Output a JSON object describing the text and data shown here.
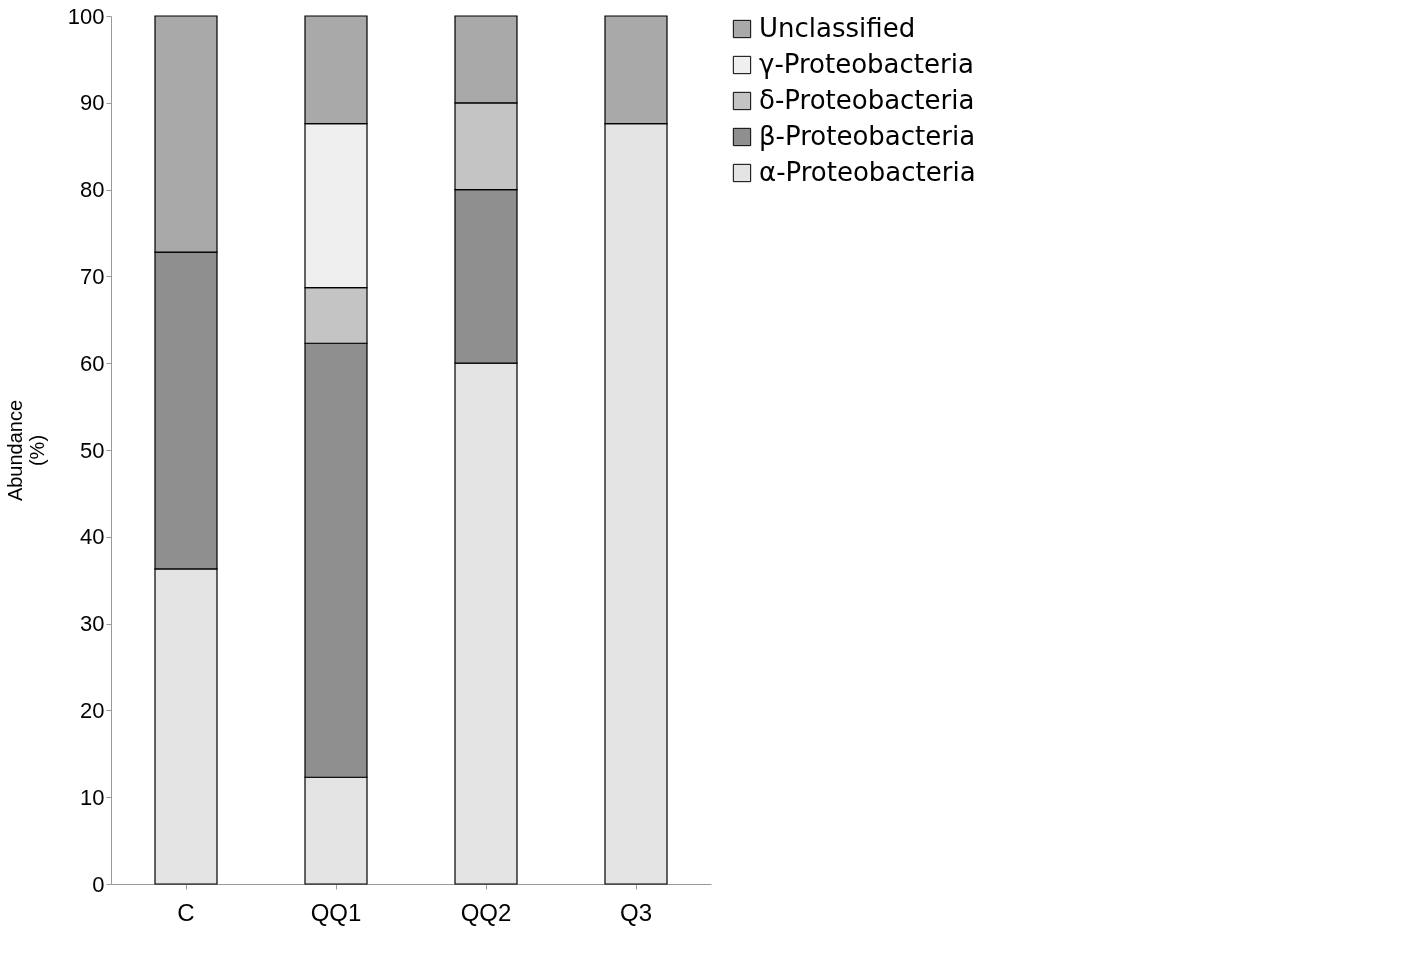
{
  "chart_data": {
    "type": "bar",
    "stacked": true,
    "ylabel": "Abundance (%)",
    "categories": [
      "C",
      "QQ1",
      "QQ2",
      "Q3"
    ],
    "series": [
      {
        "name": "α-Proteobacteria",
        "color": "#e4e4e4",
        "values": [
          36.3,
          12.3,
          60.0,
          87.6
        ]
      },
      {
        "name": "β-Proteobacteria",
        "color": "#8f8f8f",
        "values": [
          36.5,
          50.0,
          20.0,
          null
        ]
      },
      {
        "name": "δ-Proteobacteria",
        "color": "#c4c4c4",
        "values": [
          null,
          6.4,
          10.0,
          null
        ]
      },
      {
        "name": "γ-Proteobacteria",
        "color": "#efefef",
        "values": [
          null,
          18.9,
          null,
          null
        ]
      },
      {
        "name": "Unclassified",
        "color": "#a9a9a9",
        "values": [
          27.2,
          12.4,
          10.0,
          12.4
        ]
      }
    ],
    "ylim": [
      0,
      100
    ],
    "yticks": [
      0,
      10,
      20,
      30,
      40,
      50,
      60,
      70,
      80,
      90,
      100
    ],
    "grid": false,
    "legend": "right"
  }
}
